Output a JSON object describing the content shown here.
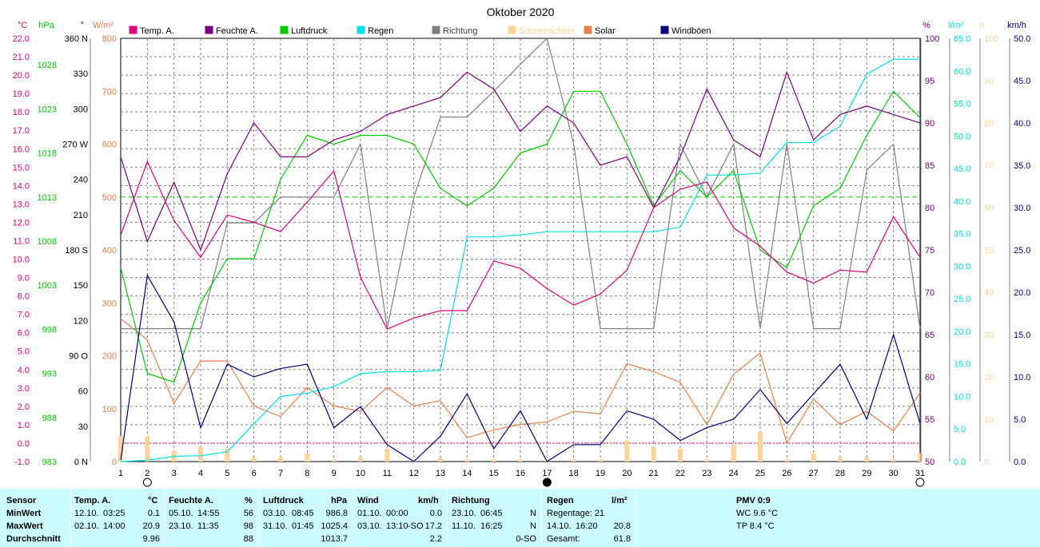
{
  "chart_data": {
    "type": "line",
    "title": "Oktober 2020",
    "x_ticks": [
      "1",
      "2",
      "3",
      "4",
      "5",
      "6",
      "7",
      "8",
      "9",
      "10",
      "11",
      "12",
      "13",
      "14",
      "15",
      "16",
      "17",
      "18",
      "19",
      "20",
      "21",
      "22",
      "23",
      "24",
      "25",
      "26",
      "27",
      "28",
      "29",
      "30",
      "31"
    ],
    "moon_phases": [
      {
        "day": 2,
        "phase": "full"
      },
      {
        "day": 17,
        "phase": "new"
      },
      {
        "day": 31,
        "phase": "full"
      }
    ],
    "axes": {
      "temp": {
        "unit": "°C",
        "min": -1.0,
        "max": 22.0,
        "ticks": [
          "-1.0",
          "0.0",
          "1.0",
          "2.0",
          "3.0",
          "4.0",
          "5.0",
          "6.0",
          "7.0",
          "8.0",
          "9.0",
          "10.0",
          "11.0",
          "12.0",
          "13.0",
          "14.0",
          "15.0",
          "16.0",
          "17.0",
          "18.0",
          "19.0",
          "20.0",
          "21.0",
          "22.0"
        ]
      },
      "press": {
        "unit": "hPa",
        "min": 983,
        "max": 1031,
        "ticks": [
          "983",
          "988",
          "993",
          "998",
          "1003",
          "1008",
          "1013",
          "1018",
          "1023",
          "1028"
        ]
      },
      "dir": {
        "unit": "°",
        "min": 0,
        "max": 360,
        "ticks": [
          "0 N",
          "30",
          "60",
          "90 O",
          "120",
          "150",
          "180 S",
          "210",
          "240",
          "270 W",
          "300",
          "330",
          "360 N"
        ]
      },
      "solar": {
        "unit": "W/m²",
        "min": 0,
        "max": 800,
        "ticks": [
          "0",
          "100",
          "200",
          "300",
          "400",
          "500",
          "600",
          "700",
          "800"
        ]
      },
      "hum": {
        "unit": "%",
        "min": 50,
        "max": 100,
        "ticks": [
          "50",
          "55",
          "60",
          "65",
          "70",
          "75",
          "80",
          "85",
          "90",
          "95",
          "100"
        ]
      },
      "rain": {
        "unit": "l/m²",
        "min": 0,
        "max": 65,
        "ticks": [
          "0.0",
          "5.0",
          "10.0",
          "15.0",
          "20.0",
          "25.0",
          "30.0",
          "35.0",
          "40.0",
          "45.0",
          "50.0",
          "55.0",
          "60.0",
          "65.0"
        ]
      },
      "sun": {
        "unit": "h",
        "min": 0,
        "max": 100,
        "ticks": [
          "0",
          "10",
          "20",
          "30",
          "40",
          "50",
          "60",
          "70",
          "80",
          "90",
          "100"
        ]
      },
      "wind": {
        "unit": "km/h",
        "min": 0,
        "max": 50,
        "ticks": [
          "0.0",
          "5.0",
          "10.0",
          "15.0",
          "20.0",
          "25.0",
          "30.0",
          "35.0",
          "40.0",
          "45.0",
          "50.0"
        ]
      }
    },
    "legend": [
      "Temp. A.",
      "Feuchte A.",
      "Luftdruck",
      "Regen",
      "Richtung",
      "Sonnenschein",
      "Solar",
      "Windböen"
    ],
    "series": [
      {
        "name": "Temp. A.",
        "axis": "temp",
        "color": "#e0007a",
        "values": [
          11.3,
          15.3,
          12.1,
          10.1,
          12.4,
          12.0,
          11.5,
          13.1,
          14.8,
          9.0,
          6.2,
          6.8,
          7.2,
          7.2,
          9.9,
          9.5,
          8.4,
          7.5,
          8.1,
          9.4,
          12.8,
          13.8,
          14.2,
          11.7,
          10.7,
          9.3,
          8.7,
          9.4,
          9.3,
          12.3,
          10.1
        ]
      },
      {
        "name": "Feuchte A.",
        "axis": "hum",
        "color": "#7a0080",
        "values": [
          86,
          76,
          83,
          75,
          84,
          90,
          86,
          86,
          88,
          89,
          91,
          92,
          93,
          96,
          94,
          89,
          92,
          90,
          85,
          86,
          80,
          86,
          94,
          88,
          86,
          96,
          88,
          91,
          92,
          91,
          90
        ]
      },
      {
        "name": "Luftdruck",
        "axis": "press",
        "color": "#00cc00",
        "values": [
          1005,
          993,
          992,
          1001,
          1006,
          1006,
          1015,
          1020,
          1019,
          1020,
          1020,
          1019,
          1014,
          1012,
          1014,
          1018,
          1019,
          1025,
          1025,
          1019,
          1012,
          1016,
          1013,
          1016,
          1007,
          1005,
          1012,
          1014,
          1020,
          1025,
          1022
        ]
      },
      {
        "name": "Regen",
        "axis": "rain",
        "color": "#00e0e0",
        "values": [
          0,
          0.2,
          0.8,
          0.9,
          1.5,
          5.8,
          10.0,
          10.5,
          11.5,
          13.5,
          13.8,
          13.8,
          14.0,
          34.5,
          34.5,
          34.8,
          35.3,
          35.3,
          35.3,
          35.3,
          35.3,
          36.0,
          44.0,
          44.0,
          44.3,
          49.0,
          49.0,
          51.5,
          59.5,
          61.8,
          61.8
        ]
      },
      {
        "name": "Richtung",
        "axis": "dir",
        "color": "#808080",
        "values": [
          113,
          113,
          113,
          113,
          203,
          203,
          225,
          225,
          225,
          270,
          113,
          225,
          293,
          293,
          315,
          338,
          360,
          270,
          113,
          113,
          113,
          270,
          225,
          270,
          113,
          270,
          113,
          113,
          248,
          270,
          113
        ]
      },
      {
        "name": "Solar",
        "axis": "solar",
        "color": "#e8804a",
        "values": [
          270,
          230,
          110,
          190,
          190,
          105,
          85,
          140,
          105,
          95,
          140,
          105,
          115,
          45,
          60,
          70,
          75,
          95,
          90,
          185,
          170,
          150,
          70,
          165,
          205,
          35,
          118,
          70,
          95,
          58,
          130
        ]
      },
      {
        "name": "Windböen",
        "axis": "wind",
        "color": "#000080",
        "values": [
          0.2,
          22.0,
          16.5,
          4.0,
          11.5,
          10.0,
          11.0,
          11.5,
          4.0,
          6.5,
          2.0,
          0.0,
          3.0,
          8.0,
          1.5,
          6.0,
          0.0,
          2.0,
          2.0,
          6.0,
          5.0,
          2.5,
          4.0,
          5.0,
          8.5,
          4.5,
          8.0,
          11.5,
          5.0,
          15.0,
          4.5
        ]
      },
      {
        "name": "Sonnenschein",
        "axis": "sun",
        "type": "bar",
        "color": "#ffd49a",
        "values": [
          6.0,
          6.0,
          2.5,
          3.5,
          3.0,
          1.0,
          1.0,
          2.0,
          0.5,
          1.0,
          3.0,
          0.5,
          1.0,
          0.5,
          0.5,
          0.5,
          0.5,
          0.5,
          0.5,
          5.0,
          3.5,
          3.0,
          0.5,
          4.0,
          7.0,
          0.5,
          2.0,
          1.0,
          1.0,
          0.5,
          2.0
        ]
      }
    ],
    "reference_lines": [
      {
        "axis": "press",
        "value": 1013,
        "color": "#00cc00"
      },
      {
        "axis": "temp",
        "value": 0,
        "color": "#e0007a"
      }
    ]
  },
  "summary": {
    "rows": [
      "Sensor",
      "MinWert",
      "MaxWert",
      "Durchschnitt"
    ],
    "temp": {
      "title": "Temp. A.",
      "unit": "°C",
      "min_date": "12.10.",
      "min_time": "03:25",
      "min_val": "0.1",
      "max_date": "02.10.",
      "max_time": "14:00",
      "max_val": "20.9",
      "avg": "9.96"
    },
    "hum": {
      "title": "Feuchte A.",
      "unit": "%",
      "min_date": "05.10.",
      "min_time": "14:55",
      "min_val": "56",
      "max_date": "23.10.",
      "max_time": "11:35",
      "max_val": "98",
      "avg": "88"
    },
    "press": {
      "title": "Luftdruck",
      "unit": "hPa",
      "min_date": "03.10.",
      "min_time": "08:45",
      "min_val": "986.8",
      "max_date": "31.10.",
      "max_time": "01:45",
      "max_val": "1025.4",
      "avg": "1013.7"
    },
    "wind": {
      "title": "Wind",
      "unit": "km/h",
      "min_date": "01.10.",
      "min_time": "00:00",
      "min_val": "0.0",
      "max_date": "03.10.",
      "max_time": "13:10",
      "max_dir": "-SO",
      "max_val": "17.2",
      "avg": "2.2"
    },
    "dir": {
      "title": "Richtung",
      "min_date": "23.10.",
      "min_time": "06:45",
      "min_val": "N",
      "max_date": "11.10.",
      "max_time": "16:25",
      "max_val": "N",
      "avg": "0-SO"
    },
    "rain": {
      "title": "Regen",
      "unit": "l/m²",
      "days": "Regentage: 21",
      "max_date": "14.10.",
      "max_time": "16:20",
      "max_val": "20.8",
      "total_label": "Gesamt:",
      "total": "61.8"
    },
    "pmv": {
      "title": "PMV 0:9",
      "wc": "WC 9.6 °C",
      "tp": "TP 8.4 °C"
    }
  }
}
